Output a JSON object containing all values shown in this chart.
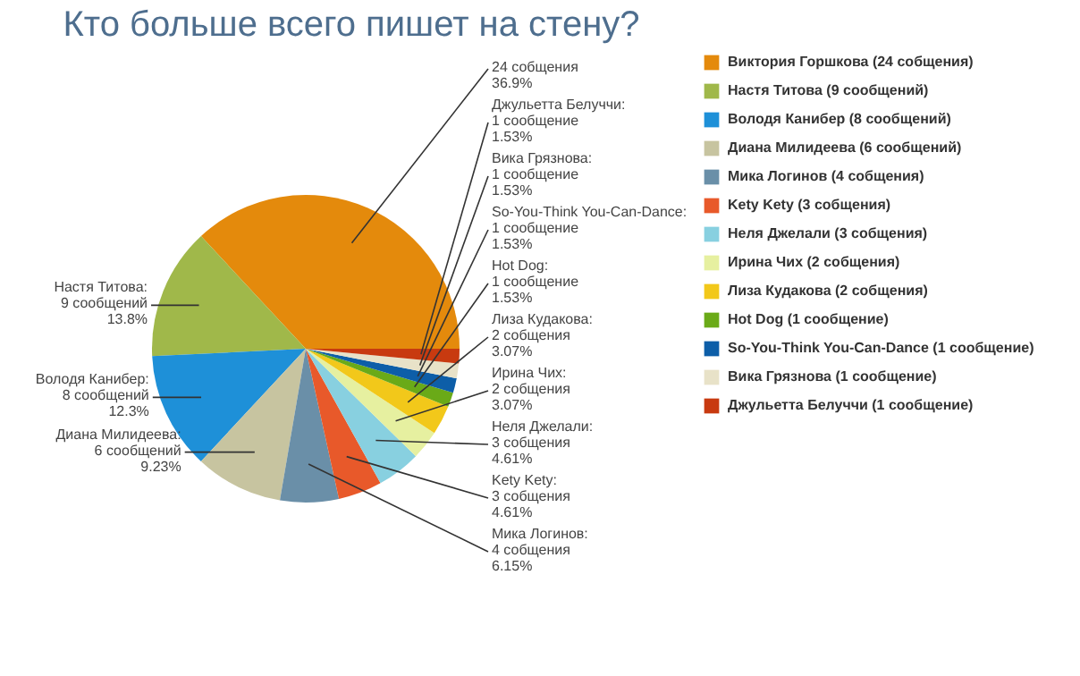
{
  "chart_data": {
    "type": "pie",
    "title": "Кто больше всего пишет на стену?",
    "categories": [
      "Виктория Горшкова (24 собщения)",
      "Настя Титова (9 сообщений)",
      "Володя Канибер (8 сообщений)",
      "Диана Милидеева (6 сообщений)",
      "Мика Логинов (4 собщения)",
      "Kety Kety (3 собщения)",
      "Неля Джелали (3 собщения)",
      "Ирина Чих (2 собщения)",
      "Лиза Кудакова (2 собщения)",
      "Hot Dog (1 сообщение)",
      "So-You-Think You-Can-Dance (1 сообщение)",
      "Вика Грязнова (1 сообщение)",
      "Джульетта Белуччи (1 сообщение)"
    ],
    "values": [
      24,
      9,
      8,
      6,
      4,
      3,
      3,
      2,
      2,
      1,
      1,
      1,
      1
    ],
    "colors": [
      "#e48a0c",
      "#a0b84a",
      "#1e90d8",
      "#c7c4a0",
      "#6a8fa8",
      "#e8592a",
      "#88d0e0",
      "#e6f0a0",
      "#f2c81a",
      "#6aaa18",
      "#0d5ea8",
      "#e8e2c8",
      "#c83a10"
    ],
    "value_labels": [
      "24 собщения\n36.9%",
      "Настя Титова:\n9 сообщений\n13.8%",
      "Володя Канибер:\n8 сообщений\n12.3%",
      "Диана Милидеева:\n6 сообщений\n9.23%",
      "Мика Логинов:\n4 собщения\n6.15%",
      "Kety Kety:\n3 собщения\n4.61%",
      "Неля Джелали:\n3 собщения\n4.61%",
      "Ирина Чих:\n2 собщения\n3.07%",
      "Лиза Кудакова:\n2 собщения\n3.07%",
      "Hot Dog:\n1 сообщение\n1.53%",
      "So-You-Think You-Can-Dance:\n1 сообщение\n1.53%",
      "Вика Грязнова:\n1 сообщение\n1.53%",
      "Джульетта Белуччи:\n1 сообщение\n1.53%"
    ],
    "legend": "right"
  }
}
